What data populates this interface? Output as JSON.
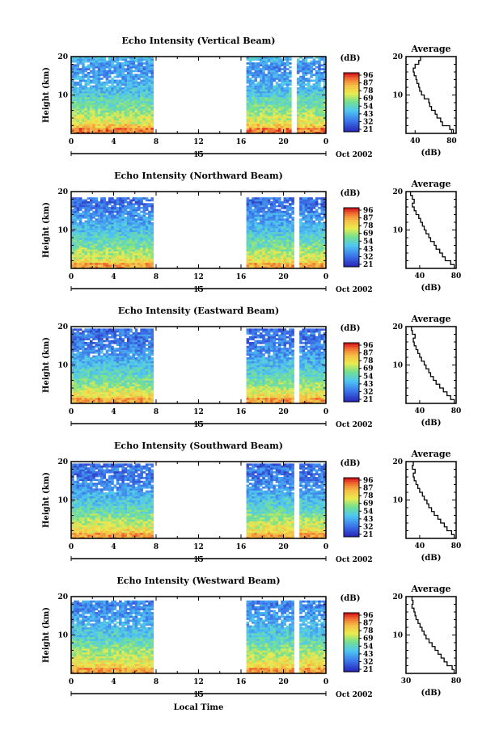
{
  "figure": {
    "month_label": "Oct 2002",
    "xlabel_bottom": "Local Time",
    "colorbar": {
      "unit_label": "(dB)",
      "ticks": [
        "96",
        "87",
        "78",
        "69",
        "54",
        "43",
        "32",
        "21"
      ]
    }
  },
  "chart_data": [
    {
      "type": "heatmap",
      "title": "Echo Intensity (Vertical Beam)",
      "ylabel": "Height (km)",
      "x_ticks": [
        "0",
        "4",
        "8",
        "12",
        "16",
        "20",
        "0"
      ],
      "date_tick": "15",
      "y_ticks": [
        "20",
        "10"
      ],
      "xlim": [
        0,
        24
      ],
      "ylim": [
        0,
        20
      ],
      "gaps": [
        [
          7.7,
          16.4
        ],
        [
          20.7,
          21.2
        ]
      ],
      "top_cutoff_km": 20,
      "avg": {
        "title": "Average",
        "xlabel": "(dB)",
        "x_ticks": [
          "40",
          "80"
        ],
        "xlim": [
          30,
          85
        ],
        "heights": [
          1,
          2,
          3,
          4,
          5,
          6,
          7,
          8,
          9,
          10,
          11,
          12,
          13,
          14,
          15,
          16,
          17,
          18,
          19,
          20
        ],
        "values": [
          82,
          78,
          70,
          68,
          64,
          62,
          58,
          56,
          55,
          50,
          47,
          45,
          44,
          42,
          41,
          39,
          38,
          40,
          44,
          46
        ]
      }
    },
    {
      "type": "heatmap",
      "title": "Echo Intensity (Northward Beam)",
      "ylabel": "Height (km)",
      "x_ticks": [
        "0",
        "4",
        "8",
        "12",
        "16",
        "20",
        "0"
      ],
      "date_tick": "15",
      "y_ticks": [
        "20",
        "10"
      ],
      "xlim": [
        0,
        24
      ],
      "ylim": [
        0,
        20
      ],
      "gaps": [
        [
          7.7,
          16.4
        ],
        [
          21.0,
          21.4
        ]
      ],
      "top_cutoff_km": 18.5,
      "avg": {
        "title": "Average",
        "xlabel": "(dB)",
        "x_ticks": [
          "40",
          "80"
        ],
        "xlim": [
          25,
          80
        ],
        "heights": [
          1,
          2,
          3,
          4,
          5,
          6,
          7,
          8,
          9,
          10,
          11,
          12,
          13,
          14,
          15,
          16,
          17,
          18,
          19,
          20
        ],
        "values": [
          78,
          74,
          68,
          65,
          62,
          58,
          56,
          52,
          50,
          47,
          45,
          43,
          41,
          39,
          36,
          34,
          32,
          34,
          32,
          30
        ]
      }
    },
    {
      "type": "heatmap",
      "title": "Echo Intensity (Eastward Beam)",
      "ylabel": "Height (km)",
      "x_ticks": [
        "0",
        "4",
        "8",
        "12",
        "16",
        "20",
        "0"
      ],
      "date_tick": "15",
      "y_ticks": [
        "20",
        "10"
      ],
      "xlim": [
        0,
        24
      ],
      "ylim": [
        0,
        20
      ],
      "gaps": [
        [
          7.7,
          16.4
        ],
        [
          21.0,
          21.4
        ]
      ],
      "top_cutoff_km": 19.5,
      "avg": {
        "title": "Average",
        "xlabel": "(dB)",
        "x_ticks": [
          "40",
          "80"
        ],
        "xlim": [
          25,
          80
        ],
        "heights": [
          1,
          2,
          3,
          4,
          5,
          6,
          7,
          8,
          9,
          10,
          11,
          12,
          13,
          14,
          15,
          16,
          17,
          18,
          19,
          20
        ],
        "values": [
          78,
          74,
          70,
          66,
          62,
          58,
          55,
          52,
          50,
          47,
          45,
          42,
          40,
          38,
          36,
          34,
          33,
          35,
          32,
          31
        ]
      }
    },
    {
      "type": "heatmap",
      "title": "Echo Intensity (Southward Beam)",
      "ylabel": "Height (km)",
      "x_ticks": [
        "0",
        "4",
        "8",
        "12",
        "16",
        "20",
        "0"
      ],
      "date_tick": "15",
      "y_ticks": [
        "20",
        "10"
      ],
      "xlim": [
        0,
        24
      ],
      "ylim": [
        0,
        20
      ],
      "gaps": [
        [
          7.7,
          16.4
        ],
        [
          21.0,
          21.4
        ]
      ],
      "top_cutoff_km": 19.5,
      "avg": {
        "title": "Average",
        "xlabel": "(dB)",
        "x_ticks": [
          "40",
          "80"
        ],
        "xlim": [
          25,
          80
        ],
        "heights": [
          1,
          2,
          3,
          4,
          5,
          6,
          7,
          8,
          9,
          10,
          11,
          12,
          13,
          14,
          15,
          16,
          17,
          18,
          19,
          20
        ],
        "values": [
          78,
          75,
          70,
          67,
          63,
          60,
          56,
          53,
          50,
          48,
          45,
          43,
          40,
          38,
          36,
          34,
          33,
          35,
          32,
          33
        ]
      }
    },
    {
      "type": "heatmap",
      "title": "Echo Intensity (Westward Beam)",
      "ylabel": "Height (km)",
      "x_ticks": [
        "0",
        "4",
        "8",
        "12",
        "16",
        "20",
        "0"
      ],
      "date_tick": "15",
      "y_ticks": [
        "20",
        "10"
      ],
      "xlim": [
        0,
        24
      ],
      "ylim": [
        0,
        20
      ],
      "gaps": [
        [
          7.7,
          16.4
        ],
        [
          21.0,
          21.4
        ]
      ],
      "top_cutoff_km": 19,
      "avg": {
        "title": "Average",
        "xlabel": "(dB)",
        "x_ticks": [
          "30",
          "80"
        ],
        "xlim": [
          30,
          80
        ],
        "heights": [
          1,
          2,
          3,
          4,
          5,
          6,
          7,
          8,
          9,
          10,
          11,
          12,
          13,
          14,
          15,
          16,
          17,
          18,
          19,
          20
        ],
        "values": [
          78,
          76,
          71,
          68,
          65,
          62,
          59,
          56,
          53,
          50,
          48,
          46,
          44,
          42,
          40,
          39,
          38,
          36,
          37,
          36
        ]
      }
    }
  ]
}
